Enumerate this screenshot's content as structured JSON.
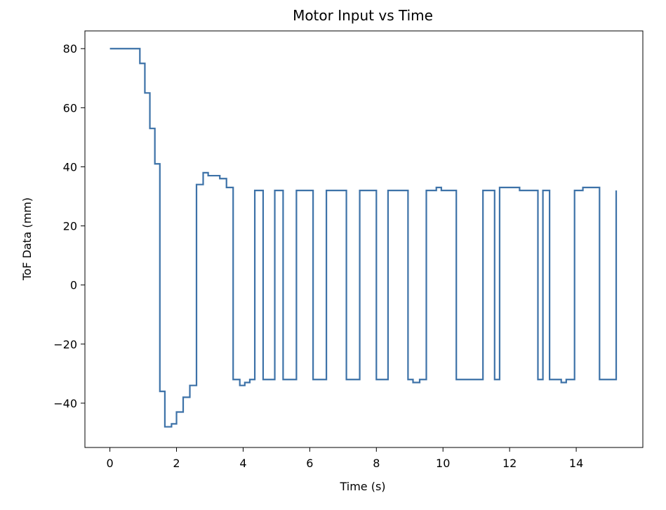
{
  "chart_data": {
    "type": "line",
    "title": "Motor Input vs Time",
    "xlabel": "Time (s)",
    "ylabel": "ToF Data (mm)",
    "xlim": [
      -0.75,
      16.0
    ],
    "ylim": [
      -55,
      86
    ],
    "xticks": [
      0,
      2,
      4,
      6,
      8,
      10,
      12,
      14
    ],
    "xtick_labels": [
      "0",
      "2",
      "4",
      "6",
      "8",
      "10",
      "12",
      "14"
    ],
    "yticks": [
      80,
      60,
      40,
      20,
      0,
      -20,
      -40
    ],
    "ytick_labels": [
      "80",
      "60",
      "40",
      "20",
      "0",
      "−20",
      "−40"
    ],
    "grid": false,
    "color": "#3d72a8",
    "series": [
      {
        "step": "post",
        "x": [
          0.0,
          0.9,
          1.05,
          1.2,
          1.35,
          1.5,
          1.65,
          1.85,
          2.0,
          2.2,
          2.4,
          2.6,
          2.8,
          2.95,
          3.3,
          3.5,
          3.7,
          3.9,
          4.05,
          4.2,
          4.35,
          4.6,
          4.95,
          5.2,
          5.6,
          6.1,
          6.5,
          7.1,
          7.5,
          8.0,
          8.35,
          8.95,
          9.1,
          9.3,
          9.5,
          9.8,
          9.95,
          10.4,
          11.2,
          11.55,
          11.7,
          12.3,
          12.85,
          13.0,
          13.2,
          13.55,
          13.7,
          13.95,
          14.2,
          14.7,
          15.2
        ],
        "y": [
          80,
          75,
          65,
          53,
          41,
          -36,
          -48,
          -47,
          -43,
          -38,
          -34,
          34,
          38,
          37,
          36,
          33,
          -32,
          -34,
          -33,
          -32,
          32,
          -32,
          32,
          -32,
          32,
          -32,
          32,
          -32,
          32,
          -32,
          32,
          -32,
          -33,
          -32,
          32,
          33,
          32,
          -32,
          32,
          -32,
          33,
          32,
          -32,
          32,
          -32,
          -33,
          -32,
          32,
          33,
          -32,
          32
        ]
      }
    ]
  }
}
